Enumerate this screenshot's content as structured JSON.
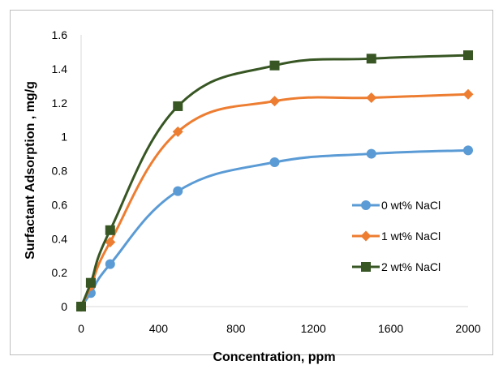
{
  "chart_data": {
    "type": "line",
    "xlabel": "Concentration, ppm",
    "ylabel": "Surfactant Adsorption , mg/g",
    "xlim": [
      0,
      2000
    ],
    "ylim": [
      0,
      1.6
    ],
    "xticks": [
      "0",
      "400",
      "800",
      "1200",
      "1600",
      "2000"
    ],
    "yticks": [
      "0",
      "0.2",
      "0.4",
      "0.6",
      "0.8",
      "1",
      "1.2",
      "1.4",
      "1.6"
    ],
    "grid": false,
    "legend_position": "right-center",
    "series": [
      {
        "name": "0 wt% NaCl",
        "color": "#5b9bd5",
        "marker": "circle",
        "x": [
          0,
          50,
          150,
          500,
          1000,
          1500,
          2000
        ],
        "y": [
          0,
          0.08,
          0.25,
          0.68,
          0.85,
          0.9,
          0.92
        ]
      },
      {
        "name": "1 wt% NaCl",
        "color": "#ed7d31",
        "marker": "diamond",
        "x": [
          0,
          50,
          150,
          500,
          1000,
          1500,
          2000
        ],
        "y": [
          0,
          0.12,
          0.38,
          1.03,
          1.21,
          1.23,
          1.25
        ]
      },
      {
        "name": "2 wt% NaCl",
        "color": "#375623",
        "marker": "square",
        "x": [
          0,
          50,
          150,
          500,
          1000,
          1500,
          2000
        ],
        "y": [
          0,
          0.14,
          0.45,
          1.18,
          1.42,
          1.46,
          1.48
        ]
      }
    ]
  }
}
